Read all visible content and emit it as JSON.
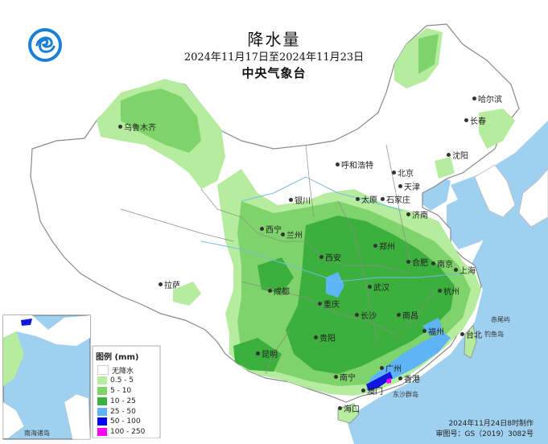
{
  "header": {
    "title": "降水量",
    "date_range": "2024年11月17日至2024年11月23日",
    "agency": "中央气象台"
  },
  "legend": {
    "title": "图例 (mm)",
    "items": [
      {
        "label": "无降水",
        "color": "#ffffff"
      },
      {
        "label": "0.5 - 5",
        "color": "#b5ec9e"
      },
      {
        "label": "5 - 10",
        "color": "#7ed46a"
      },
      {
        "label": "10 - 25",
        "color": "#3cb03c"
      },
      {
        "label": "25 - 50",
        "color": "#5eb4f5"
      },
      {
        "label": "50 - 100",
        "color": "#0000ff"
      },
      {
        "label": "100 - 250",
        "color": "#ff00ff"
      }
    ]
  },
  "footer": {
    "made": "2024年11月24日8时制作",
    "approval": "审图号：GS（2019）3082号"
  },
  "inset": {
    "label": "南海诸岛"
  },
  "cities": [
    {
      "name": "乌鲁木齐"
    },
    {
      "name": "哈尔滨"
    },
    {
      "name": "长春"
    },
    {
      "name": "沈阳"
    },
    {
      "name": "呼和浩特"
    },
    {
      "name": "北京"
    },
    {
      "name": "天津"
    },
    {
      "name": "银川"
    },
    {
      "name": "太原"
    },
    {
      "name": "石家庄"
    },
    {
      "name": "济南"
    },
    {
      "name": "西宁"
    },
    {
      "name": "兰州"
    },
    {
      "name": "郑州"
    },
    {
      "name": "西安"
    },
    {
      "name": "合肥"
    },
    {
      "name": "南京"
    },
    {
      "name": "上海"
    },
    {
      "name": "拉萨"
    },
    {
      "name": "成都"
    },
    {
      "name": "武汉"
    },
    {
      "name": "杭州"
    },
    {
      "name": "重庆"
    },
    {
      "name": "长沙"
    },
    {
      "name": "南昌"
    },
    {
      "name": "福州"
    },
    {
      "name": "台北"
    },
    {
      "name": "贵阳"
    },
    {
      "name": "昆明"
    },
    {
      "name": "南宁"
    },
    {
      "name": "广州"
    },
    {
      "name": "香港"
    },
    {
      "name": "澳门"
    },
    {
      "name": "海口"
    }
  ],
  "places": [
    {
      "name": "赤尾屿"
    },
    {
      "name": "钓鱼岛"
    },
    {
      "name": "东沙群岛"
    }
  ],
  "colors": {
    "ocean": "#9fd0f0",
    "land": "#ffffff",
    "border": "#8a8a8a",
    "river": "#7ab8e6"
  }
}
